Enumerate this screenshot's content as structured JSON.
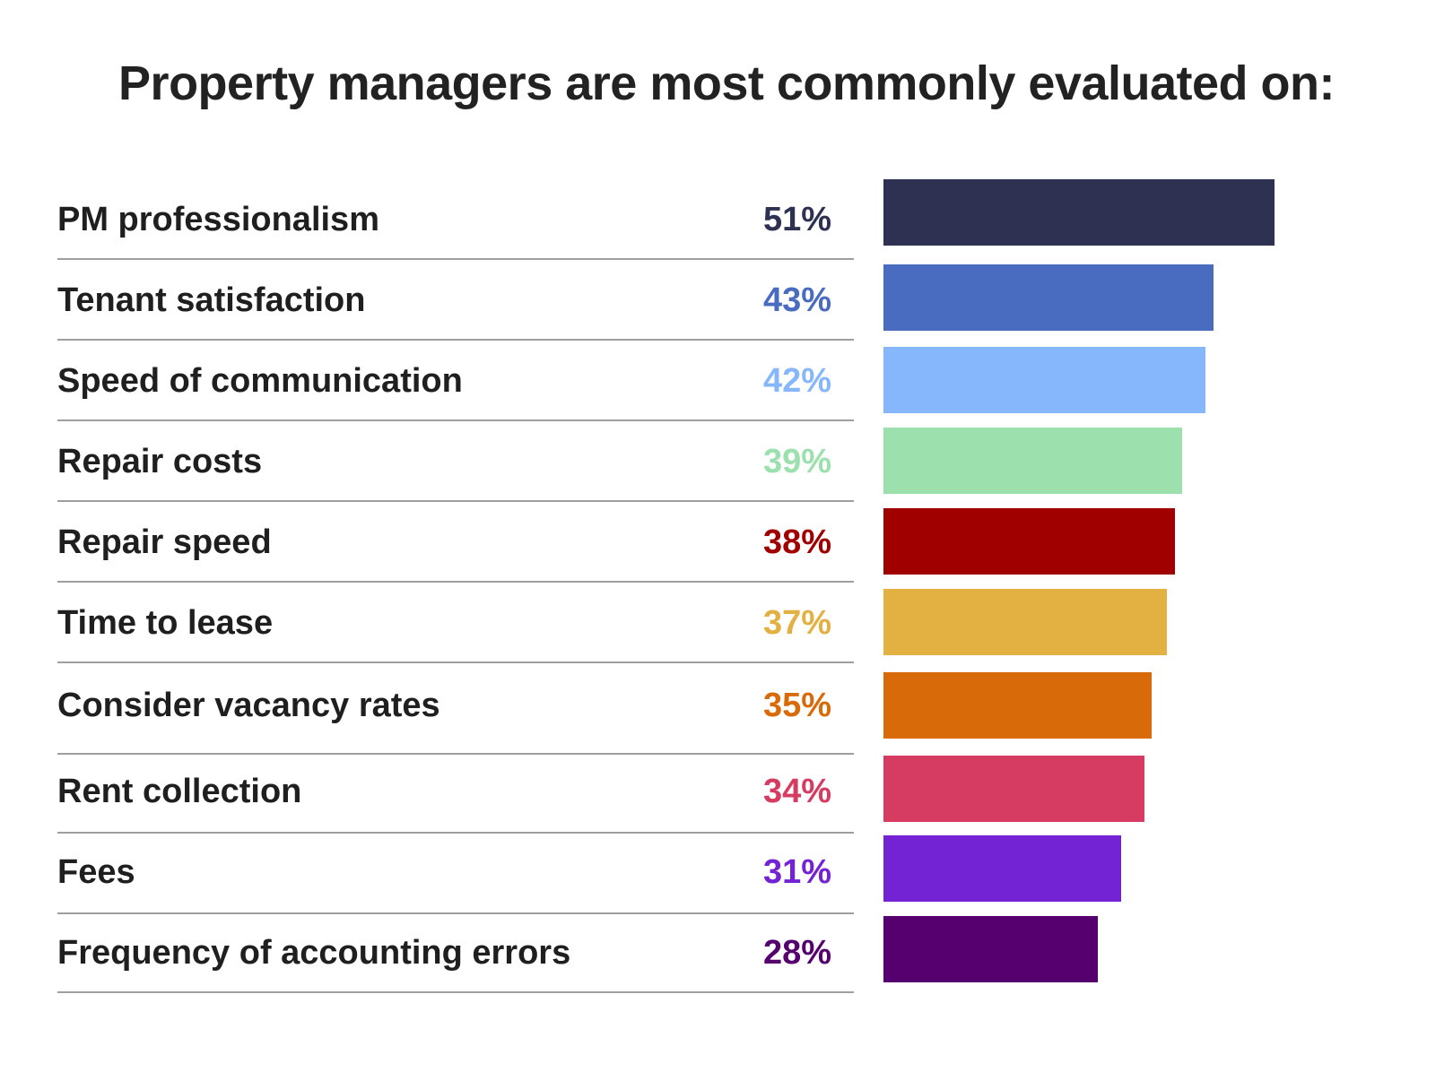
{
  "chart_data": {
    "type": "bar",
    "orientation": "horizontal",
    "title": "Property managers are most commonly evaluated on:",
    "unit": "%",
    "categories": [
      "PM professionalism",
      "Tenant satisfaction",
      "Speed of communication",
      "Repair costs",
      "Repair speed",
      "Time to lease",
      "Consider vacancy rates",
      "Rent collection",
      "Fees",
      "Frequency of accounting errors"
    ],
    "values": [
      51,
      43,
      42,
      39,
      38,
      37,
      35,
      34,
      31,
      28
    ],
    "value_labels": [
      "51%",
      "43%",
      "42%",
      "39%",
      "38%",
      "37%",
      "35%",
      "34%",
      "31%",
      "28%"
    ],
    "colors": [
      "#2f3152",
      "#4a6cc0",
      "#86b6fb",
      "#9be0ad",
      "#a00000",
      "#e3b042",
      "#d96a0a",
      "#d63b62",
      "#7322d4",
      "#55006e"
    ],
    "xlim": [
      0,
      100
    ],
    "grid": false,
    "legend": "none"
  }
}
